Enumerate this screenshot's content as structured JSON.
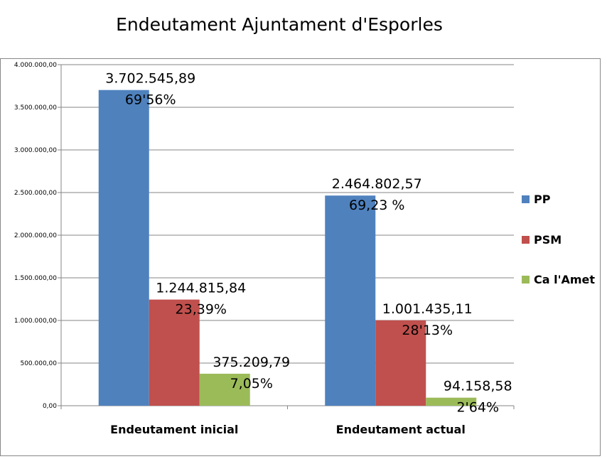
{
  "chart_data": {
    "type": "bar",
    "title": "Endeutament Ajuntament d'Esporles",
    "categories": [
      "Endeutament inicial",
      "Endeutament actual"
    ],
    "series": [
      {
        "name": "PP",
        "color": "#4F81BD",
        "values": [
          3702545.89,
          2464802.57
        ],
        "labels": [
          "3.702.545,89",
          "2.464.802,57"
        ],
        "percent_labels": [
          "69'56%",
          "69,23 %"
        ]
      },
      {
        "name": "PSM",
        "color": "#C0504D",
        "values": [
          1244815.84,
          1001435.11
        ],
        "labels": [
          "1.244.815,84",
          "1.001.435,11"
        ],
        "percent_labels": [
          "23,39%",
          "28'13%"
        ]
      },
      {
        "name": "Ca l'Amet",
        "color": "#9BBB59",
        "values": [
          375209.79,
          94158.58
        ],
        "labels": [
          "375.209,79",
          "94.158,58"
        ],
        "percent_labels": [
          "7,05%",
          "2'64%"
        ]
      }
    ],
    "yticks": [
      "0,00",
      "500.000,00",
      "1.000.000,00",
      "1.500.000,00",
      "2.000.000,00",
      "2.500.000,00",
      "3.000.000,00",
      "3.500.000,00",
      "4.000.000,00"
    ],
    "ylim": [
      0,
      4000000
    ],
    "grid": true,
    "legend_position": "right"
  }
}
